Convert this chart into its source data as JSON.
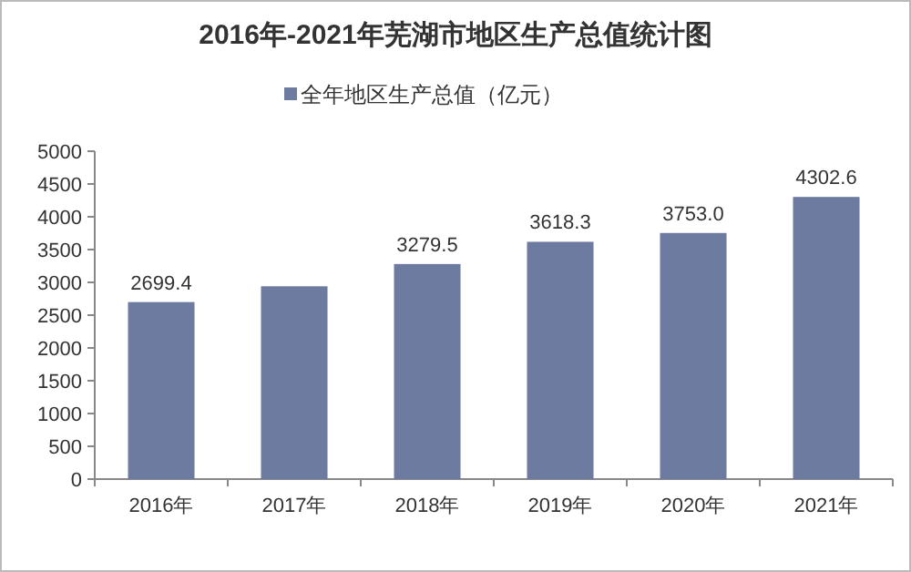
{
  "chart_data": {
    "type": "bar",
    "title": "2016年-2021年芜湖市地区生产总值统计图",
    "categories": [
      "2016年",
      "2017年",
      "2018年",
      "2019年",
      "2020年",
      "2021年"
    ],
    "series": [
      {
        "name": "全年地区生产总值（亿元）",
        "color": "#6e7ba0",
        "values": [
          2699.4,
          2940,
          3279.5,
          3618.3,
          3753.0,
          4302.6
        ],
        "value_labels": [
          "2699.4",
          null,
          "3279.5",
          "3618.3",
          "3753.0",
          "4302.6"
        ]
      }
    ],
    "ylim": [
      0,
      5000
    ],
    "yticks": [
      0,
      500,
      1000,
      1500,
      2000,
      2500,
      3000,
      3500,
      4000,
      4500,
      5000
    ],
    "grid": false,
    "legend": "top"
  }
}
